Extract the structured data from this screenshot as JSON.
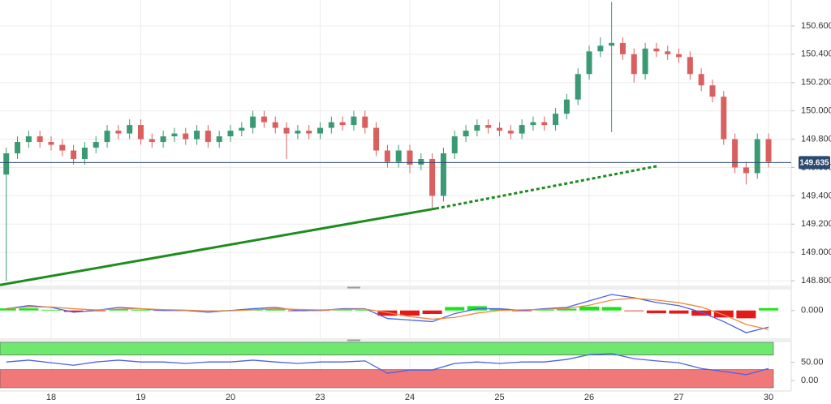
{
  "chart_data": [
    {
      "type": "candlestick",
      "x": [
        -0.5,
        -0.375,
        -0.25,
        -0.125,
        0,
        0.125,
        0.25,
        0.375,
        0.5,
        0.625,
        0.75,
        0.875,
        1,
        1.125,
        1.25,
        1.375,
        1.5,
        1.625,
        1.75,
        1.875,
        2,
        2.125,
        2.25,
        2.375,
        2.5,
        2.625,
        2.75,
        2.875,
        3,
        3.125,
        3.25,
        3.375,
        3.5,
        3.625,
        3.75,
        3.875,
        4,
        4.125,
        4.25,
        4.375,
        4.5,
        4.625,
        4.75,
        4.875,
        5,
        5.125,
        5.25,
        5.375,
        5.5,
        5.625,
        5.75,
        5.875,
        6,
        6.125,
        6.25,
        6.375,
        6.5,
        6.625,
        6.75,
        6.875,
        7,
        7.125,
        7.25,
        7.375,
        7.5,
        7.625,
        7.75,
        7.875,
        8
      ],
      "open": [
        149.55,
        149.7,
        149.78,
        149.82,
        149.78,
        149.76,
        149.72,
        149.66,
        149.74,
        149.78,
        149.86,
        149.84,
        149.9,
        149.8,
        149.78,
        149.82,
        149.84,
        149.8,
        149.86,
        149.78,
        149.82,
        149.86,
        149.88,
        149.96,
        149.92,
        149.88,
        149.84,
        149.86,
        149.84,
        149.88,
        149.92,
        149.9,
        149.96,
        149.88,
        149.72,
        149.64,
        149.72,
        149.62,
        149.66,
        149.4,
        149.7,
        149.82,
        149.86,
        149.9,
        149.88,
        149.86,
        149.84,
        149.9,
        149.92,
        149.9,
        149.98,
        150.08,
        150.26,
        150.42,
        150.46,
        150.48,
        150.4,
        150.26,
        150.44,
        150.42,
        150.4,
        150.38,
        150.26,
        150.18,
        150.1,
        149.8,
        149.6,
        149.56,
        149.8
      ],
      "high": [
        149.74,
        149.82,
        149.86,
        149.86,
        149.82,
        149.8,
        149.76,
        149.78,
        149.82,
        149.9,
        149.9,
        149.94,
        149.94,
        149.84,
        149.86,
        149.88,
        149.88,
        149.9,
        149.9,
        149.86,
        149.9,
        149.92,
        150.0,
        150.0,
        149.96,
        149.92,
        149.9,
        149.9,
        149.92,
        149.96,
        149.96,
        150.0,
        150.0,
        149.92,
        149.76,
        149.76,
        149.76,
        149.7,
        149.7,
        149.74,
        149.86,
        149.9,
        149.94,
        149.94,
        149.92,
        149.9,
        149.94,
        149.96,
        149.96,
        150.02,
        150.12,
        150.3,
        150.46,
        150.52,
        150.77,
        150.52,
        150.44,
        150.48,
        150.48,
        150.46,
        150.44,
        150.42,
        150.3,
        150.22,
        150.14,
        149.84,
        149.64,
        149.84,
        149.84
      ],
      "low": [
        148.8,
        149.66,
        149.74,
        149.74,
        149.72,
        149.68,
        149.62,
        149.62,
        149.7,
        149.74,
        149.8,
        149.8,
        149.76,
        149.74,
        149.74,
        149.78,
        149.76,
        149.76,
        149.74,
        149.74,
        149.78,
        149.82,
        149.84,
        149.88,
        149.84,
        149.66,
        149.8,
        149.8,
        149.8,
        149.84,
        149.86,
        149.86,
        149.84,
        149.68,
        149.6,
        149.6,
        149.56,
        149.58,
        149.31,
        149.36,
        149.66,
        149.78,
        149.82,
        149.84,
        149.82,
        149.8,
        149.8,
        149.86,
        149.86,
        149.86,
        149.94,
        150.04,
        150.22,
        150.38,
        149.85,
        150.36,
        150.2,
        150.22,
        150.38,
        150.36,
        150.34,
        150.22,
        150.14,
        150.06,
        149.76,
        149.56,
        149.48,
        149.52,
        149.6
      ],
      "close": [
        149.7,
        149.78,
        149.82,
        149.78,
        149.76,
        149.72,
        149.66,
        149.74,
        149.78,
        149.86,
        149.84,
        149.9,
        149.8,
        149.78,
        149.82,
        149.84,
        149.8,
        149.86,
        149.78,
        149.82,
        149.86,
        149.88,
        149.96,
        149.92,
        149.88,
        149.84,
        149.86,
        149.84,
        149.88,
        149.92,
        149.9,
        149.96,
        149.88,
        149.72,
        149.64,
        149.72,
        149.62,
        149.66,
        149.4,
        149.7,
        149.82,
        149.86,
        149.9,
        149.88,
        149.86,
        149.84,
        149.9,
        149.92,
        149.9,
        149.98,
        150.08,
        150.26,
        150.42,
        150.46,
        150.48,
        150.4,
        150.26,
        150.44,
        150.42,
        150.4,
        150.38,
        150.26,
        150.18,
        150.1,
        149.8,
        149.6,
        149.56,
        149.8,
        149.64
      ],
      "up_color": "#3a9a74",
      "down_color": "#d9605f",
      "xlim": [
        -0.57,
        8.253
      ],
      "xticks": [
        {
          "value": 0,
          "label": "18"
        },
        {
          "value": 1,
          "label": "19"
        },
        {
          "value": 2,
          "label": "20"
        },
        {
          "value": 3,
          "label": "23"
        },
        {
          "value": 4,
          "label": "24"
        },
        {
          "value": 5,
          "label": "25"
        },
        {
          "value": 6,
          "label": "26"
        },
        {
          "value": 7,
          "label": "27"
        },
        {
          "value": 8,
          "label": "30"
        }
      ],
      "ylim": [
        148.766,
        150.783
      ],
      "yticks": [
        {
          "value": 148.8,
          "label": "148.800"
        },
        {
          "value": 149.0,
          "label": "149.000"
        },
        {
          "value": 149.2,
          "label": "149.200"
        },
        {
          "value": 149.4,
          "label": "149.400"
        },
        {
          "value": 149.6,
          "label": "149.600"
        },
        {
          "value": 149.8,
          "label": "149.800"
        },
        {
          "value": 150.0,
          "label": "150.000"
        },
        {
          "value": 150.2,
          "label": "150.200"
        },
        {
          "value": 150.4,
          "label": "150.400"
        },
        {
          "value": 150.6,
          "label": "150.600"
        }
      ],
      "grid": true,
      "last_price": 149.635,
      "last_price_color": "#2b4a6f",
      "trendlines": [
        {
          "x": [
            -0.57,
            4.29
          ],
          "y": [
            148.77,
            149.31
          ],
          "style": "solid"
        },
        {
          "x": [
            4.29,
            6.76
          ],
          "y": [
            149.31,
            149.61
          ],
          "style": "dotted"
        }
      ],
      "trendline_color": "#1e8c1e"
    },
    {
      "type": "macd",
      "x": [
        -0.5,
        -0.25,
        0,
        0.25,
        0.5,
        0.75,
        1,
        1.25,
        1.5,
        1.75,
        2,
        2.25,
        2.5,
        2.75,
        3,
        3.25,
        3.5,
        3.75,
        4,
        4.25,
        4.5,
        4.75,
        5,
        5.25,
        5.5,
        5.75,
        6,
        6.25,
        6.5,
        6.75,
        7,
        7.25,
        7.5,
        7.75,
        8
      ],
      "series": [
        {
          "color": "#4a62e8",
          "values": [
            0.01,
            0.028,
            0.018,
            -0.01,
            0,
            0.018,
            0.01,
            0,
            0,
            -0.01,
            0,
            0.01,
            0.018,
            0,
            0,
            0.01,
            0.01,
            -0.046,
            -0.055,
            -0.064,
            -0.018,
            0.01,
            0.01,
            0,
            0.01,
            0.018,
            0.055,
            0.092,
            0.073,
            0.046,
            0.028,
            -0.01,
            -0.064,
            -0.128,
            -0.096
          ]
        },
        {
          "color": "#f08a3c",
          "values": [
            0.012,
            0.02,
            0.02,
            0.01,
            0.003,
            0.008,
            0.01,
            0.005,
            0.002,
            -0.003,
            -0.002,
            0.004,
            0.01,
            0.006,
            0.003,
            0.006,
            0.008,
            -0.012,
            -0.035,
            -0.05,
            -0.04,
            -0.015,
            0,
            0.004,
            0.006,
            0.012,
            0.03,
            0.06,
            0.07,
            0.06,
            0.045,
            0.02,
            -0.025,
            -0.08,
            -0.11
          ]
        }
      ],
      "histogram": {
        "values": [
          0.012,
          0.012,
          0.004,
          -0.008,
          -0.004,
          0.006,
          0.004,
          -0.002,
          -0.002,
          -0.004,
          0.002,
          0.006,
          0.006,
          -0.004,
          -0.002,
          0.004,
          0.004,
          -0.03,
          -0.03,
          -0.02,
          0.02,
          0.025,
          0.01,
          -0.004,
          0.004,
          0.01,
          0.022,
          0.02,
          -0.004,
          -0.016,
          -0.018,
          -0.03,
          -0.04,
          -0.045,
          0.014
        ],
        "up_color": "#19e619",
        "down_color": "#e61919"
      },
      "ylim": [
        -0.16,
        0.12
      ],
      "yticks": [
        {
          "value": 0,
          "label": "0.000"
        }
      ]
    },
    {
      "type": "line",
      "x": [
        -0.5,
        -0.25,
        0,
        0.25,
        0.5,
        0.75,
        1,
        1.25,
        1.5,
        1.75,
        2,
        2.25,
        2.5,
        2.75,
        3,
        3.25,
        3.5,
        3.75,
        4,
        4.25,
        4.5,
        4.75,
        5,
        5.25,
        5.5,
        5.75,
        6,
        6.25,
        6.5,
        6.75,
        7,
        7.25,
        7.5,
        7.75,
        8
      ],
      "series": [
        {
          "color": "#4a62e8",
          "values": [
            51,
            56,
            49,
            42,
            51,
            56,
            51,
            51,
            47,
            51,
            51,
            56,
            51,
            47,
            51,
            51,
            54,
            20,
            29,
            29,
            47,
            51,
            47,
            51,
            51,
            58,
            71,
            74,
            60,
            54,
            49,
            33,
            25,
            16,
            33
          ]
        }
      ],
      "bands": [
        {
          "range": [
            70,
            105
          ],
          "color": "#6fe86f"
        },
        {
          "range": [
            -20,
            30
          ],
          "color": "#f07878"
        }
      ],
      "ylim": [
        -20,
        105
      ],
      "yticks": [
        {
          "value": 50,
          "label": "50.00"
        },
        {
          "value": 0,
          "label": "0.00"
        }
      ]
    }
  ]
}
